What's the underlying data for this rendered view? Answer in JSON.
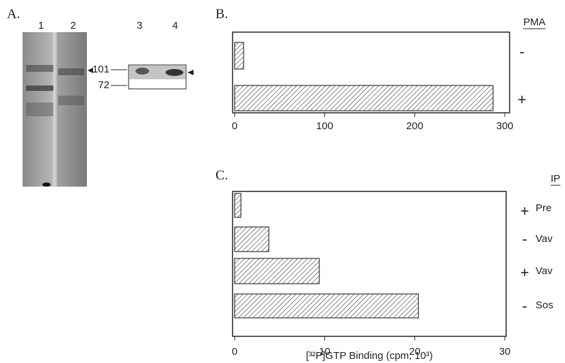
{
  "panel_a": {
    "label": "A.",
    "lanes": [
      "1",
      "2",
      "3",
      "4"
    ],
    "markers": [
      "101",
      "72"
    ]
  },
  "chart_data": [
    {
      "type": "hbar",
      "panel": "B.",
      "header": "PMA",
      "categories": [
        "-",
        "+"
      ],
      "values": [
        10,
        287
      ],
      "xlim": [
        0,
        300
      ],
      "xticks": [
        0,
        100,
        200,
        300
      ],
      "color": "#333"
    },
    {
      "type": "hbar",
      "panel": "C.",
      "header": "IP",
      "categories": [
        "+",
        "-",
        "+",
        "-"
      ],
      "category_names": [
        "Pre",
        "Vav",
        "Vav",
        "Sos"
      ],
      "values": [
        0.7,
        3.8,
        9.4,
        20.4
      ],
      "xlim": [
        0,
        30
      ],
      "xticks": [
        0,
        10,
        20,
        30
      ],
      "color": "#333",
      "x_label": "[³²P]GTP Binding (cpm, 10³)"
    }
  ]
}
